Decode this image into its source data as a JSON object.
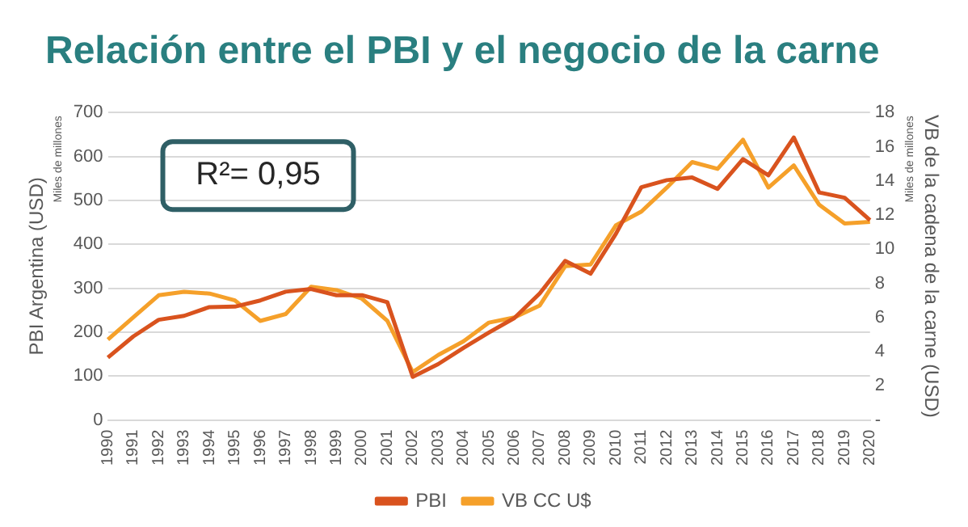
{
  "chart_data": {
    "type": "line",
    "title": "Relación entre el PBI y el negocio de la carne",
    "ylabel": "PBI Argentina (USD)",
    "y2label": "VB de la cadena de la carne (USD)",
    "annotations": [
      "R²= 0,95",
      "Miles de millones",
      "Miles de millones"
    ],
    "categories": [
      "1990",
      "1991",
      "1992",
      "1993",
      "1994",
      "1995",
      "1996",
      "1997",
      "1998",
      "1999",
      "2000",
      "2001",
      "2002",
      "2003",
      "2004",
      "2005",
      "2006",
      "2007",
      "2008",
      "2009",
      "2010",
      "2011",
      "2012",
      "2013",
      "2014",
      "2015",
      "2016",
      "2017",
      "2018",
      "2019",
      "2020"
    ],
    "series": [
      {
        "name": "PBI",
        "color": "#d9531e",
        "values": [
          142,
          190,
          228,
          237,
          257,
          258,
          272,
          292,
          298,
          284,
          284,
          268,
          98,
          127,
          164,
          199,
          232,
          288,
          362,
          333,
          424,
          530,
          546,
          552,
          526,
          594,
          557,
          643,
          518,
          506,
          455
        ]
      },
      {
        "name": "VB CC U$",
        "color": "#f5a02a",
        "axis": "y2",
        "values": [
          4.7,
          6.0,
          7.3,
          7.5,
          7.4,
          7.0,
          5.8,
          6.2,
          7.8,
          7.6,
          7.1,
          5.8,
          2.8,
          3.8,
          4.6,
          5.7,
          6.0,
          6.7,
          9.0,
          9.1,
          11.4,
          12.2,
          13.6,
          15.1,
          14.7,
          16.4,
          13.6,
          14.9,
          12.6,
          11.5,
          11.6
        ]
      }
    ],
    "ylim": [
      0,
      700
    ],
    "yticks": [
      0,
      100,
      200,
      300,
      400,
      500,
      600,
      700
    ],
    "y2lim": [
      0,
      18
    ],
    "y2ticks": [
      {
        "value": 0,
        "label": "-"
      },
      2,
      4,
      6,
      8,
      10,
      12,
      14,
      16,
      18
    ],
    "grid": "y",
    "legend": "bottom"
  }
}
